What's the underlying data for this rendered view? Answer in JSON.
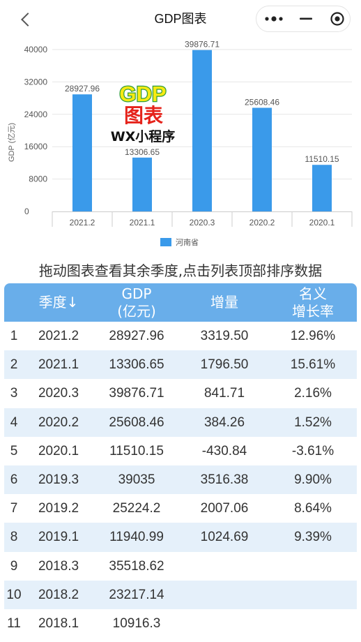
{
  "nav": {
    "title": "GDP图表",
    "icons": {
      "back": "chevron-left-icon",
      "more": "more-dots-icon",
      "minimize": "minimize-icon",
      "close": "target-circle-icon"
    }
  },
  "chart_data": {
    "type": "bar",
    "ylabel": "GDP (亿元)",
    "categories": [
      "2021.2",
      "2021.1",
      "2020.3",
      "2020.2",
      "2020.1"
    ],
    "series": [
      {
        "name": "河南省",
        "color": "#3a9aea",
        "values": [
          28927.96,
          13306.65,
          39876.71,
          25608.46,
          11510.15
        ]
      }
    ],
    "data_labels": true,
    "ylim": [
      0,
      40000
    ],
    "yticks": [
      0,
      8000,
      16000,
      24000,
      32000,
      40000
    ],
    "grid": true,
    "legend": "bottom-center"
  },
  "logo": {
    "gdp": "GDP",
    "chart": "图表",
    "app": "WX小程序"
  },
  "hint": "拖动图表查看其余季度,点击列表顶部排序数据",
  "table": {
    "header_color": "#69aeea",
    "stripe_color": "#e5f0fa",
    "headers": [
      [
        "季度↓"
      ],
      [
        "GDP",
        "(亿元)"
      ],
      [
        "增量"
      ],
      [
        "名义",
        "增长率"
      ]
    ],
    "rows": [
      {
        "index": "1",
        "quarter": "2021.2",
        "gdp": "28927.96",
        "increase": "3319.50",
        "growth": "12.96%"
      },
      {
        "index": "2",
        "quarter": "2021.1",
        "gdp": "13306.65",
        "increase": "1796.50",
        "growth": "15.61%"
      },
      {
        "index": "3",
        "quarter": "2020.3",
        "gdp": "39876.71",
        "increase": "841.71",
        "growth": "2.16%"
      },
      {
        "index": "4",
        "quarter": "2020.2",
        "gdp": "25608.46",
        "increase": "384.26",
        "growth": "1.52%"
      },
      {
        "index": "5",
        "quarter": "2020.1",
        "gdp": "11510.15",
        "increase": "-430.84",
        "growth": "-3.61%"
      },
      {
        "index": "6",
        "quarter": "2019.3",
        "gdp": "39035",
        "increase": "3516.38",
        "growth": "9.90%"
      },
      {
        "index": "7",
        "quarter": "2019.2",
        "gdp": "25224.2",
        "increase": "2007.06",
        "growth": "8.64%"
      },
      {
        "index": "8",
        "quarter": "2019.1",
        "gdp": "11940.99",
        "increase": "1024.69",
        "growth": "9.39%"
      },
      {
        "index": "9",
        "quarter": "2018.3",
        "gdp": "35518.62",
        "increase": "",
        "growth": ""
      },
      {
        "index": "10",
        "quarter": "2018.2",
        "gdp": "23217.14",
        "increase": "",
        "growth": ""
      },
      {
        "index": "11",
        "quarter": "2018.1",
        "gdp": "10916.3",
        "increase": "",
        "growth": ""
      }
    ]
  }
}
